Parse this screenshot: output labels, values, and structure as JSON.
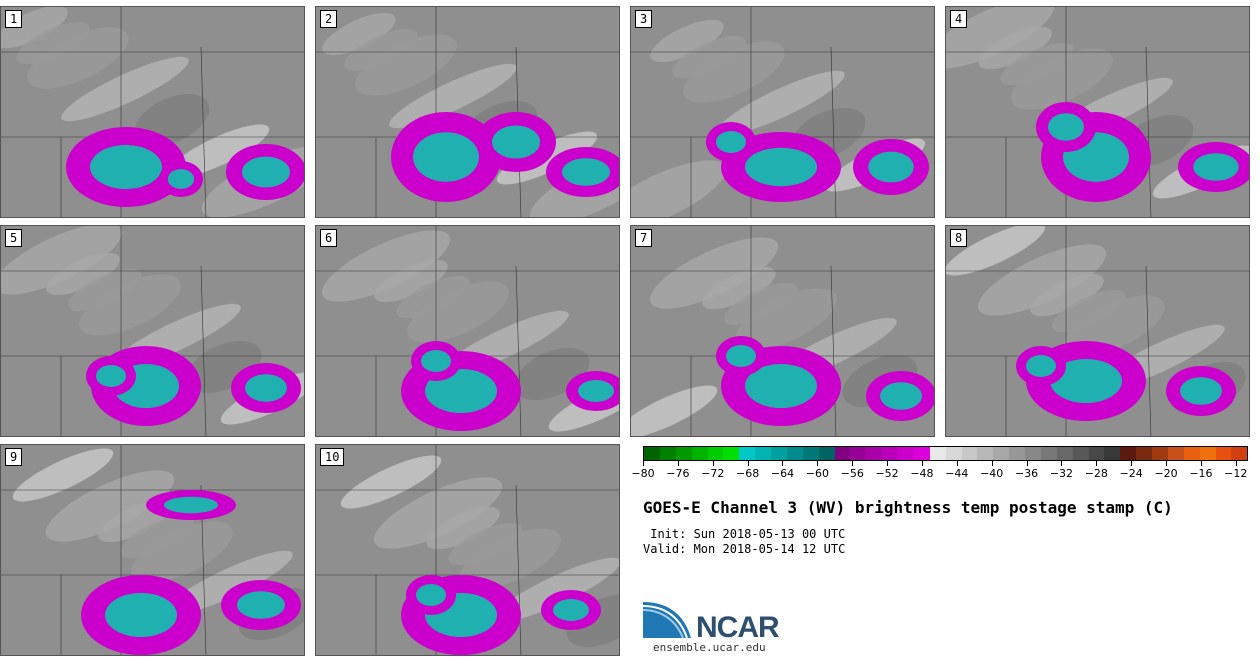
{
  "panels": [
    {
      "label": "1"
    },
    {
      "label": "2"
    },
    {
      "label": "3"
    },
    {
      "label": "4"
    },
    {
      "label": "5"
    },
    {
      "label": "6"
    },
    {
      "label": "7"
    },
    {
      "label": "8"
    },
    {
      "label": "9"
    },
    {
      "label": "10"
    }
  ],
  "colorbar": {
    "tick_labels": [
      "−80",
      "−76",
      "−72",
      "−68",
      "−64",
      "−60",
      "−56",
      "−52",
      "−48",
      "−44",
      "−40",
      "−36",
      "−32",
      "−28",
      "−24",
      "−20",
      "−16",
      "−12"
    ],
    "colors": [
      "#006400",
      "#008000",
      "#009900",
      "#00b300",
      "#00cc00",
      "#00e000",
      "#00c8c8",
      "#00b4b4",
      "#00a0a0",
      "#008c8c",
      "#007878",
      "#006464",
      "#800080",
      "#960096",
      "#aa00aa",
      "#bb00bb",
      "#cc00cc",
      "#dd00dd",
      "#e8e8e8",
      "#d8d8d8",
      "#c8c8c8",
      "#b8b8b8",
      "#a8a8a8",
      "#989898",
      "#888888",
      "#787878",
      "#686868",
      "#585858",
      "#484848",
      "#383838",
      "#5a1a10",
      "#7a2a10",
      "#a03a10",
      "#c8501a",
      "#e86010",
      "#f07010",
      "#e85010",
      "#d04010"
    ]
  },
  "title": "GOES-E Channel 3 (WV) brightness temp postage stamp (C)",
  "init": " Init: Sun 2018-05-13 00 UTC",
  "valid": "Valid: Mon 2018-05-14 12 UTC",
  "logo": {
    "name": "NCAR",
    "url": "ensemble.ucar.edu"
  },
  "colors": {
    "magenta": "#cc00cc",
    "teal": "#20b0b0",
    "gray": "#8f8f8f"
  }
}
